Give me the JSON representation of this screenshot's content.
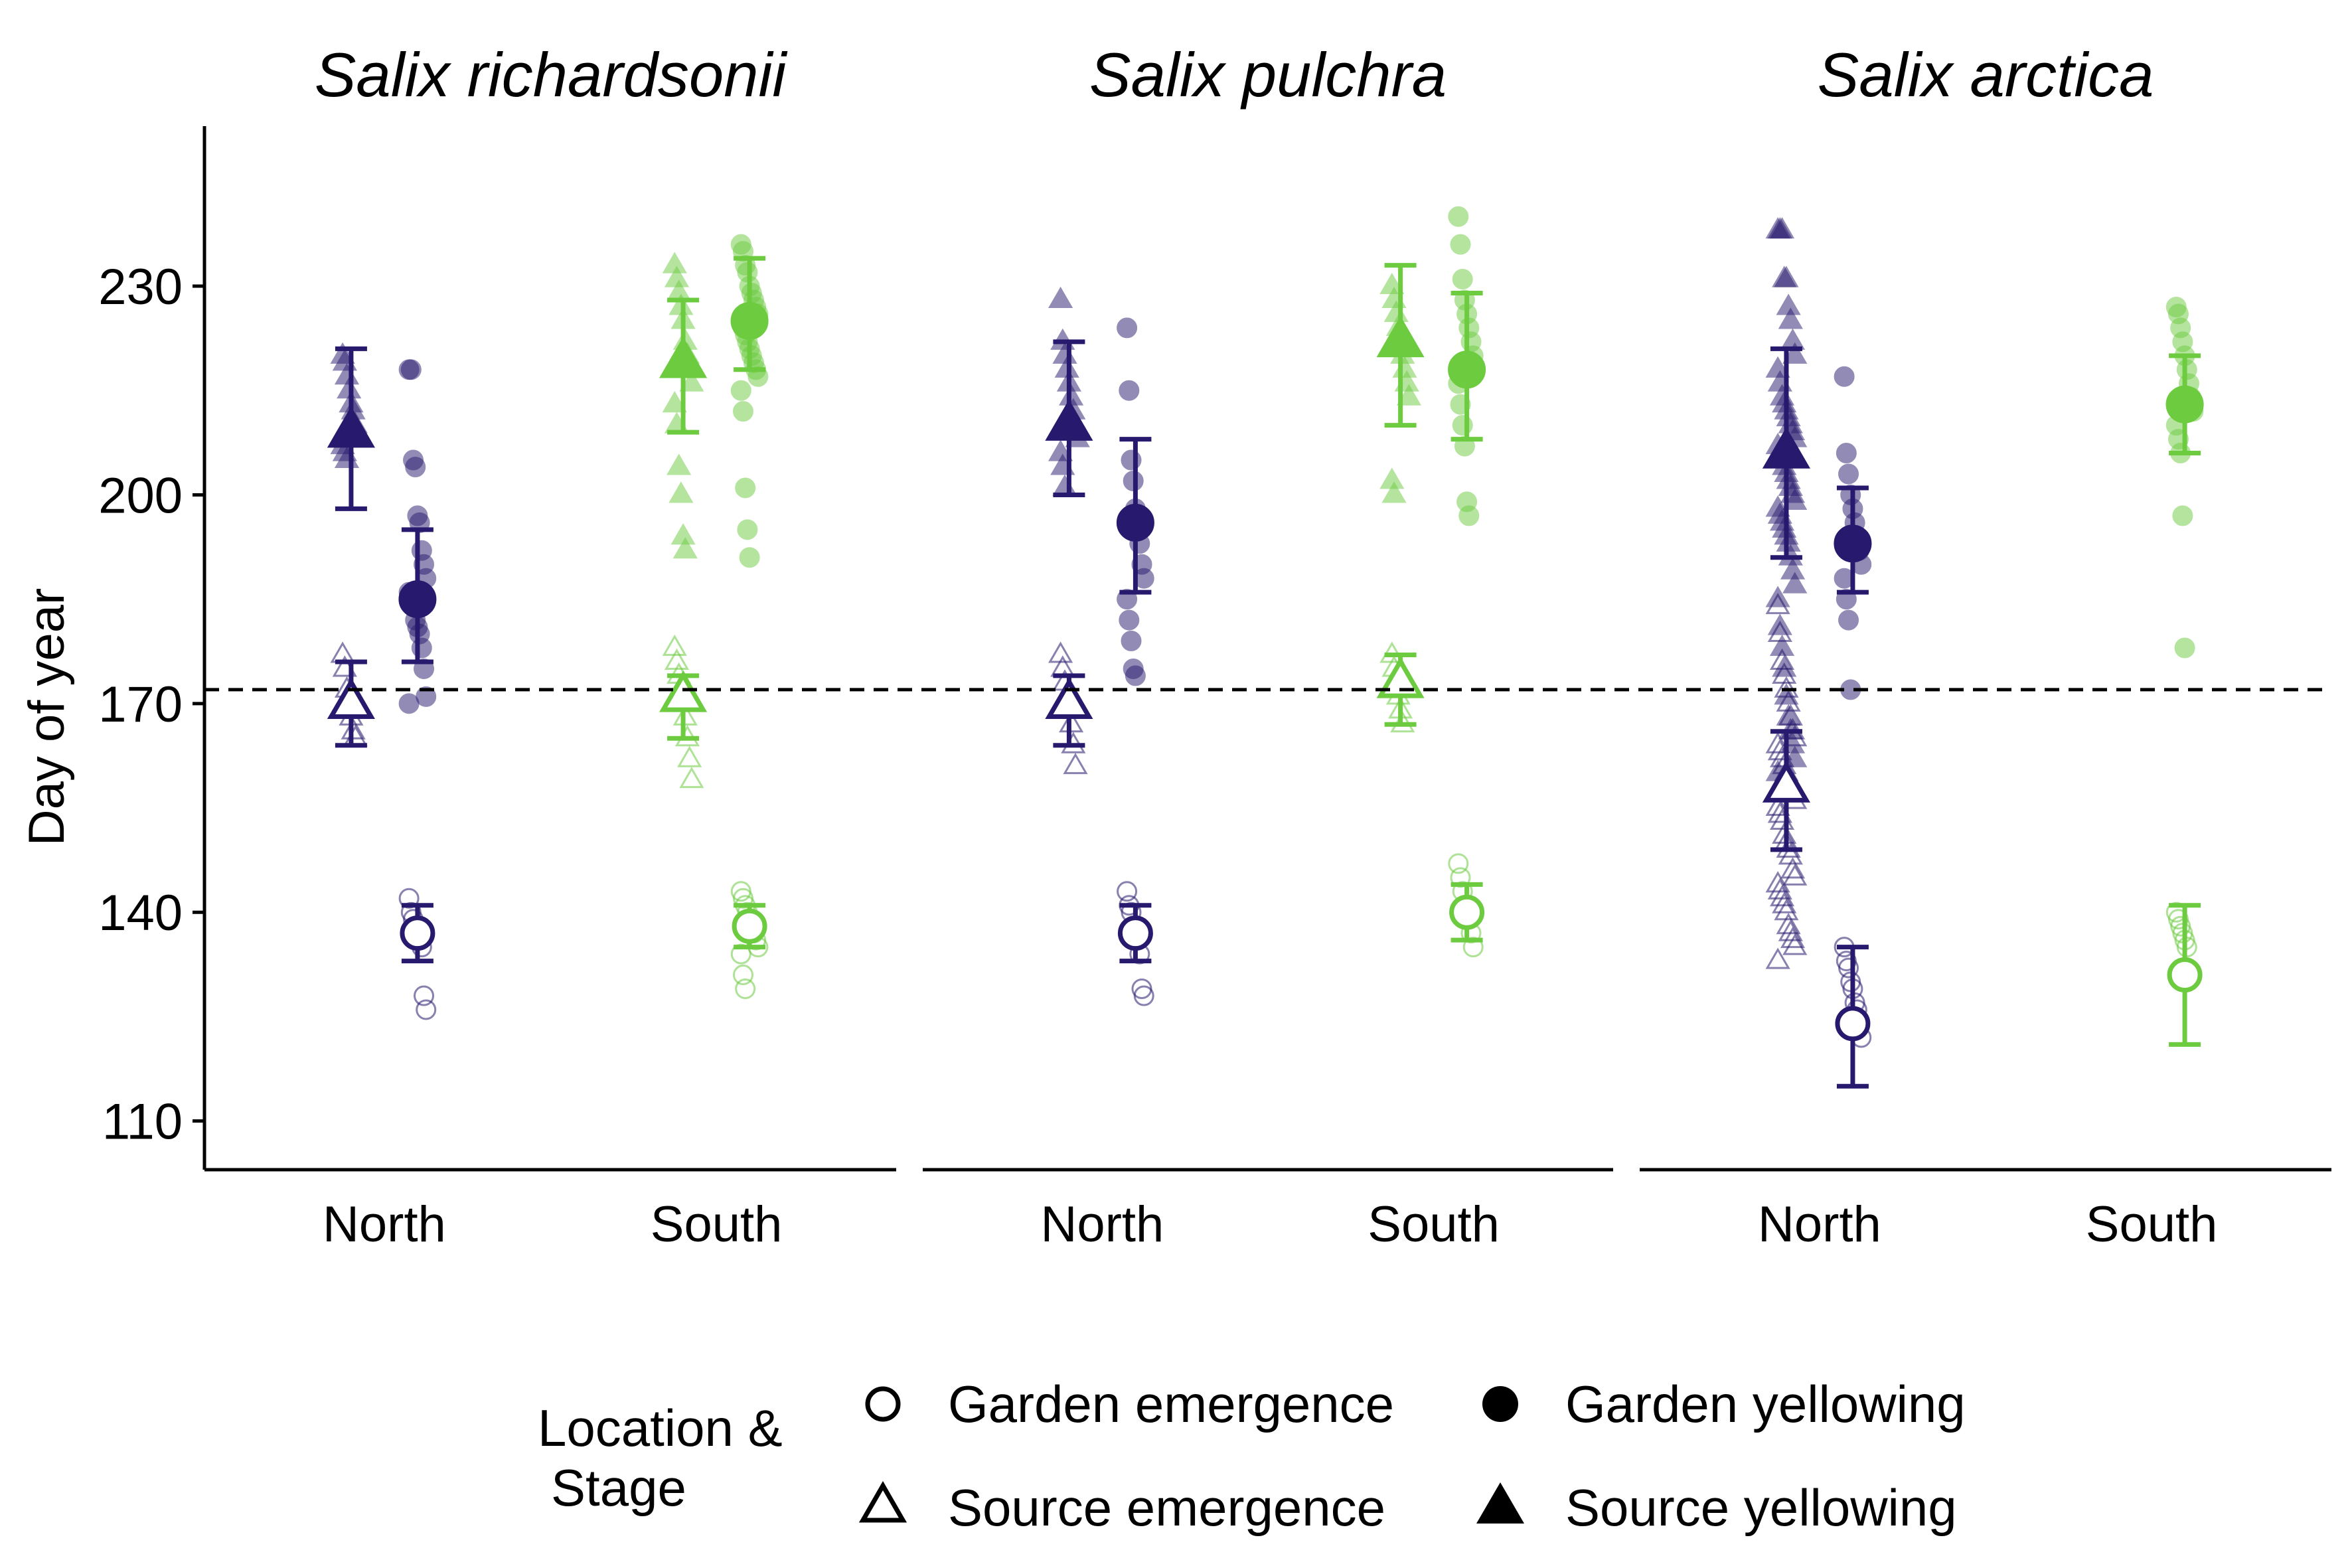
{
  "colors": {
    "North": "#271a6e",
    "South": "#6ccb3f",
    "reference_line": "#000000"
  },
  "chart_data": {
    "type": "scatter",
    "ylabel": "Day of year",
    "ylim": [
      103,
      253
    ],
    "yticks": [
      110,
      140,
      170,
      200,
      230
    ],
    "reference_line": {
      "y": 172,
      "style": "dashed"
    },
    "xcategories": [
      "North",
      "South"
    ],
    "legend": {
      "title_lines": [
        "Location &",
        "Stage"
      ],
      "placement": "bottom",
      "items": [
        {
          "label": "Garden emergence",
          "symbol": "circle-open"
        },
        {
          "label": "Garden yellowing",
          "symbol": "circle-filled"
        },
        {
          "label": "Source emergence",
          "symbol": "triangle-open"
        },
        {
          "label": "Source yellowing",
          "symbol": "triangle-filled"
        }
      ]
    },
    "panels": [
      {
        "title": "Salix richardsonii",
        "groups": [
          {
            "location": "North",
            "series": [
              {
                "stage": "Source yellowing",
                "mean": 209,
                "lower": 198,
                "upper": 221,
                "points": [
                  220,
                  219,
                  217,
                  215,
                  213,
                  212,
                  210,
                  209,
                  208,
                  207,
                  206,
                  205
                ]
              },
              {
                "stage": "Source emergence",
                "mean": 170,
                "lower": 164,
                "upper": 176,
                "points": [
                  177,
                  175,
                  172,
                  170,
                  168,
                  166,
                  165
                ]
              },
              {
                "stage": "Garden yellowing",
                "mean": 185,
                "lower": 176,
                "upper": 195,
                "points": [
                  218,
                  218,
                  205,
                  204,
                  197,
                  196,
                  192,
                  190,
                  188,
                  186,
                  185,
                  184,
                  182,
                  181,
                  180,
                  178,
                  175,
                  171,
                  170
                ]
              },
              {
                "stage": "Garden emergence",
                "mean": 137,
                "lower": 133,
                "upper": 141,
                "points": [
                  142,
                  140,
                  139,
                  138,
                  137,
                  136,
                  135,
                  128,
                  126
                ]
              }
            ]
          },
          {
            "location": "South",
            "series": [
              {
                "stage": "Source yellowing",
                "mean": 219,
                "lower": 209,
                "upper": 228,
                "points": [
                  233,
                  231,
                  229,
                  227,
                  225,
                  222,
                  220,
                  218,
                  216,
                  213,
                  210,
                  204,
                  200,
                  194,
                  192
                ]
              },
              {
                "stage": "Source emergence",
                "mean": 171,
                "lower": 165,
                "upper": 174,
                "points": [
                  178,
                  176,
                  174,
                  172,
                  170,
                  168,
                  165,
                  162,
                  159
                ]
              },
              {
                "stage": "Garden yellowing",
                "mean": 225,
                "lower": 218,
                "upper": 234,
                "points": [
                  236,
                  235,
                  233,
                  232,
                  230,
                  229,
                  228,
                  227,
                  226,
                  225,
                  224,
                  223,
                  222,
                  221,
                  220,
                  219,
                  218,
                  217,
                  215,
                  212,
                  201,
                  195,
                  191
                ]
              },
              {
                "stage": "Garden emergence",
                "mean": 138,
                "lower": 135,
                "upper": 141,
                "points": [
                  143,
                  142,
                  141,
                  140,
                  139,
                  138,
                  137,
                  136,
                  135,
                  134,
                  131,
                  129
                ]
              }
            ]
          }
        ]
      },
      {
        "title": "Salix pulchra",
        "groups": [
          {
            "location": "North",
            "series": [
              {
                "stage": "Source yellowing",
                "mean": 210,
                "lower": 200,
                "upper": 222,
                "points": [
                  228,
                  222,
                  220,
                  218,
                  216,
                  214,
                  212,
                  210,
                  208,
                  206,
                  204,
                  201
                ]
              },
              {
                "stage": "Source emergence",
                "mean": 170,
                "lower": 164,
                "upper": 174,
                "points": [
                  177,
                  175,
                  173,
                  171,
                  169,
                  167,
                  164,
                  161
                ]
              },
              {
                "stage": "Garden yellowing",
                "mean": 196,
                "lower": 186,
                "upper": 208,
                "points": [
                  224,
                  215,
                  205,
                  202,
                  198,
                  196,
                  193,
                  190,
                  188,
                  185,
                  182,
                  179,
                  175,
                  174
                ]
              },
              {
                "stage": "Garden emergence",
                "mean": 137,
                "lower": 133,
                "upper": 141,
                "points": [
                  143,
                  141,
                  140,
                  138,
                  137,
                  136,
                  134,
                  129,
                  128
                ]
              }
            ]
          },
          {
            "location": "South",
            "series": [
              {
                "stage": "Source yellowing",
                "mean": 222,
                "lower": 210,
                "upper": 233,
                "points": [
                  230,
                  228,
                  226,
                  224,
                  222,
                  220,
                  218,
                  216,
                  214,
                  202,
                  200
                ]
              },
              {
                "stage": "Source emergence",
                "mean": 173,
                "lower": 167,
                "upper": 177,
                "points": [
                  177,
                  175,
                  173,
                  171,
                  169,
                  167
                ]
              },
              {
                "stage": "Garden yellowing",
                "mean": 218,
                "lower": 208,
                "upper": 229,
                "points": [
                  240,
                  236,
                  231,
                  228,
                  226,
                  224,
                  222,
                  220,
                  218,
                  216,
                  213,
                  210,
                  207,
                  199,
                  197
                ]
              },
              {
                "stage": "Garden emergence",
                "mean": 140,
                "lower": 136,
                "upper": 144,
                "points": [
                  147,
                  145,
                  143,
                  141,
                  140,
                  139,
                  137,
                  135
                ]
              }
            ]
          }
        ]
      },
      {
        "title": "Salix arctica",
        "groups": [
          {
            "location": "North",
            "series": [
              {
                "stage": "Source yellowing",
                "mean": 206,
                "lower": 191,
                "upper": 221,
                "points": [
                  238,
                  238,
                  238,
                  231,
                  231,
                  227,
                  225,
                  222,
                  220,
                  218,
                  216,
                  214,
                  213,
                  212,
                  211,
                  210,
                  209,
                  208,
                  207,
                  206,
                  205,
                  204,
                  203,
                  202,
                  201,
                  200,
                  199,
                  198,
                  197,
                  196,
                  195,
                  194,
                  193,
                  191,
                  189,
                  187,
                  185,
                  181,
                  178,
                  175,
                  171,
                  168,
                  166,
                  164,
                  162,
                  160,
                  158
                ]
              },
              {
                "stage": "Source emergence",
                "mean": 158,
                "lower": 149,
                "upper": 166,
                "points": [
                  184,
                  180,
                  176,
                  174,
                  172,
                  170,
                  168,
                  166,
                  165,
                  164,
                  163,
                  162,
                  161,
                  160,
                  159,
                  158,
                  157,
                  156,
                  155,
                  154,
                  153,
                  151,
                  150,
                  149,
                  148,
                  146,
                  145,
                  144,
                  143,
                  142,
                  141,
                  140,
                  138,
                  137,
                  136,
                  135,
                  133
                ]
              },
              {
                "stage": "Garden yellowing",
                "mean": 193,
                "lower": 186,
                "upper": 201,
                "points": [
                  217,
                  206,
                  203,
                  200,
                  198,
                  196,
                  194,
                  192,
                  190,
                  188,
                  185,
                  182,
                  172
                ]
              },
              {
                "stage": "Garden emergence",
                "mean": 124,
                "lower": 115,
                "upper": 135,
                "points": [
                  135,
                  133,
                  132,
                  130,
                  129,
                  127,
                  126,
                  124,
                  122
                ]
              }
            ]
          },
          {
            "location": "South",
            "series": [
              {
                "stage": "Garden yellowing",
                "mean": 213,
                "lower": 206,
                "upper": 220,
                "points": [
                  227,
                  226,
                  224,
                  222,
                  220,
                  218,
                  216,
                  214,
                  212,
                  210,
                  208,
                  206,
                  197,
                  178
                ]
              },
              {
                "stage": "Garden emergence",
                "mean": 131,
                "lower": 121,
                "upper": 141,
                "points": [
                  140,
                  139,
                  138,
                  137,
                  136,
                  135
                ]
              }
            ]
          }
        ]
      }
    ]
  }
}
